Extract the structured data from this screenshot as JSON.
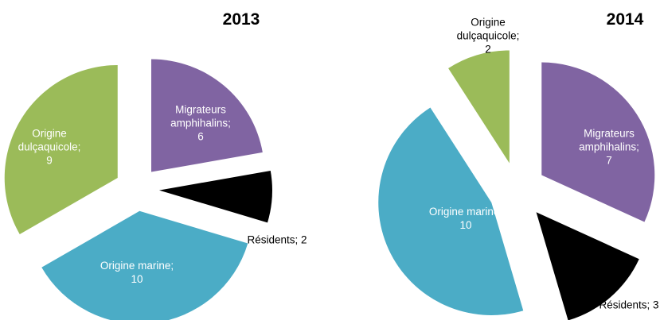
{
  "chart_data": [
    {
      "type": "pie",
      "title": "2013",
      "categories": [
        "Migrateurs amphihalins;",
        "Résidents;",
        "Origine marine;",
        "Origine dulçaquicole;"
      ],
      "values": [
        6,
        2,
        10,
        9
      ],
      "colors": [
        "#8064a2",
        "#000000",
        "#4bacc6",
        "#9bbb59"
      ]
    },
    {
      "type": "pie",
      "title": "2014",
      "categories": [
        "Migrateurs amphihalins;",
        "Résidents;",
        "Origine marine;",
        "Origine dulçaquicole;"
      ],
      "values": [
        7,
        3,
        10,
        2
      ],
      "colors": [
        "#8064a2",
        "#000000",
        "#4bacc6",
        "#9bbb59"
      ]
    }
  ]
}
